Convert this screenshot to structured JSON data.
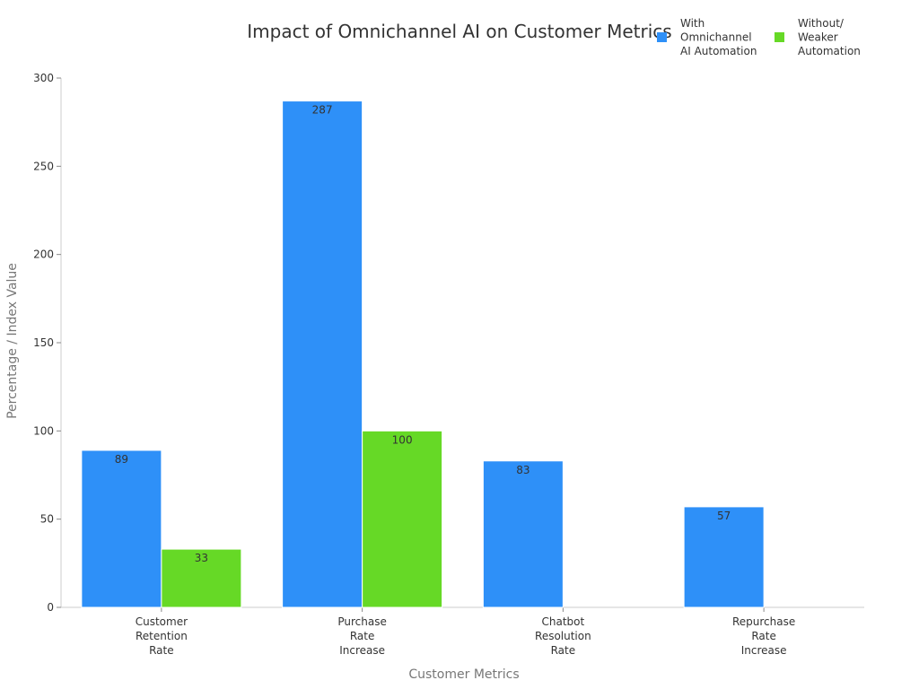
{
  "chart_data": {
    "type": "bar",
    "title": "Impact of Omnichannel AI on Customer Metrics",
    "xlabel": "Customer Metrics",
    "ylabel": "Percentage / Index Value",
    "ylim": [
      0,
      300
    ],
    "yticks": [
      0,
      50,
      100,
      150,
      200,
      250,
      300
    ],
    "categories": [
      [
        "Customer",
        "Retention",
        "Rate"
      ],
      [
        "Purchase",
        "Rate",
        "Increase"
      ],
      [
        "Chatbot",
        "Resolution",
        "Rate"
      ],
      [
        "Repurchase",
        "Rate",
        "Increase"
      ]
    ],
    "series": [
      {
        "name": [
          "With",
          "Omnichannel",
          "AI Automation"
        ],
        "color": "#2e90f8",
        "values": [
          89,
          287,
          83,
          57
        ]
      },
      {
        "name": [
          "Without/",
          "Weaker",
          "Automation"
        ],
        "color": "#66d926",
        "values": [
          33,
          100,
          null,
          null
        ]
      }
    ],
    "grid": false,
    "legend": "top-right"
  }
}
